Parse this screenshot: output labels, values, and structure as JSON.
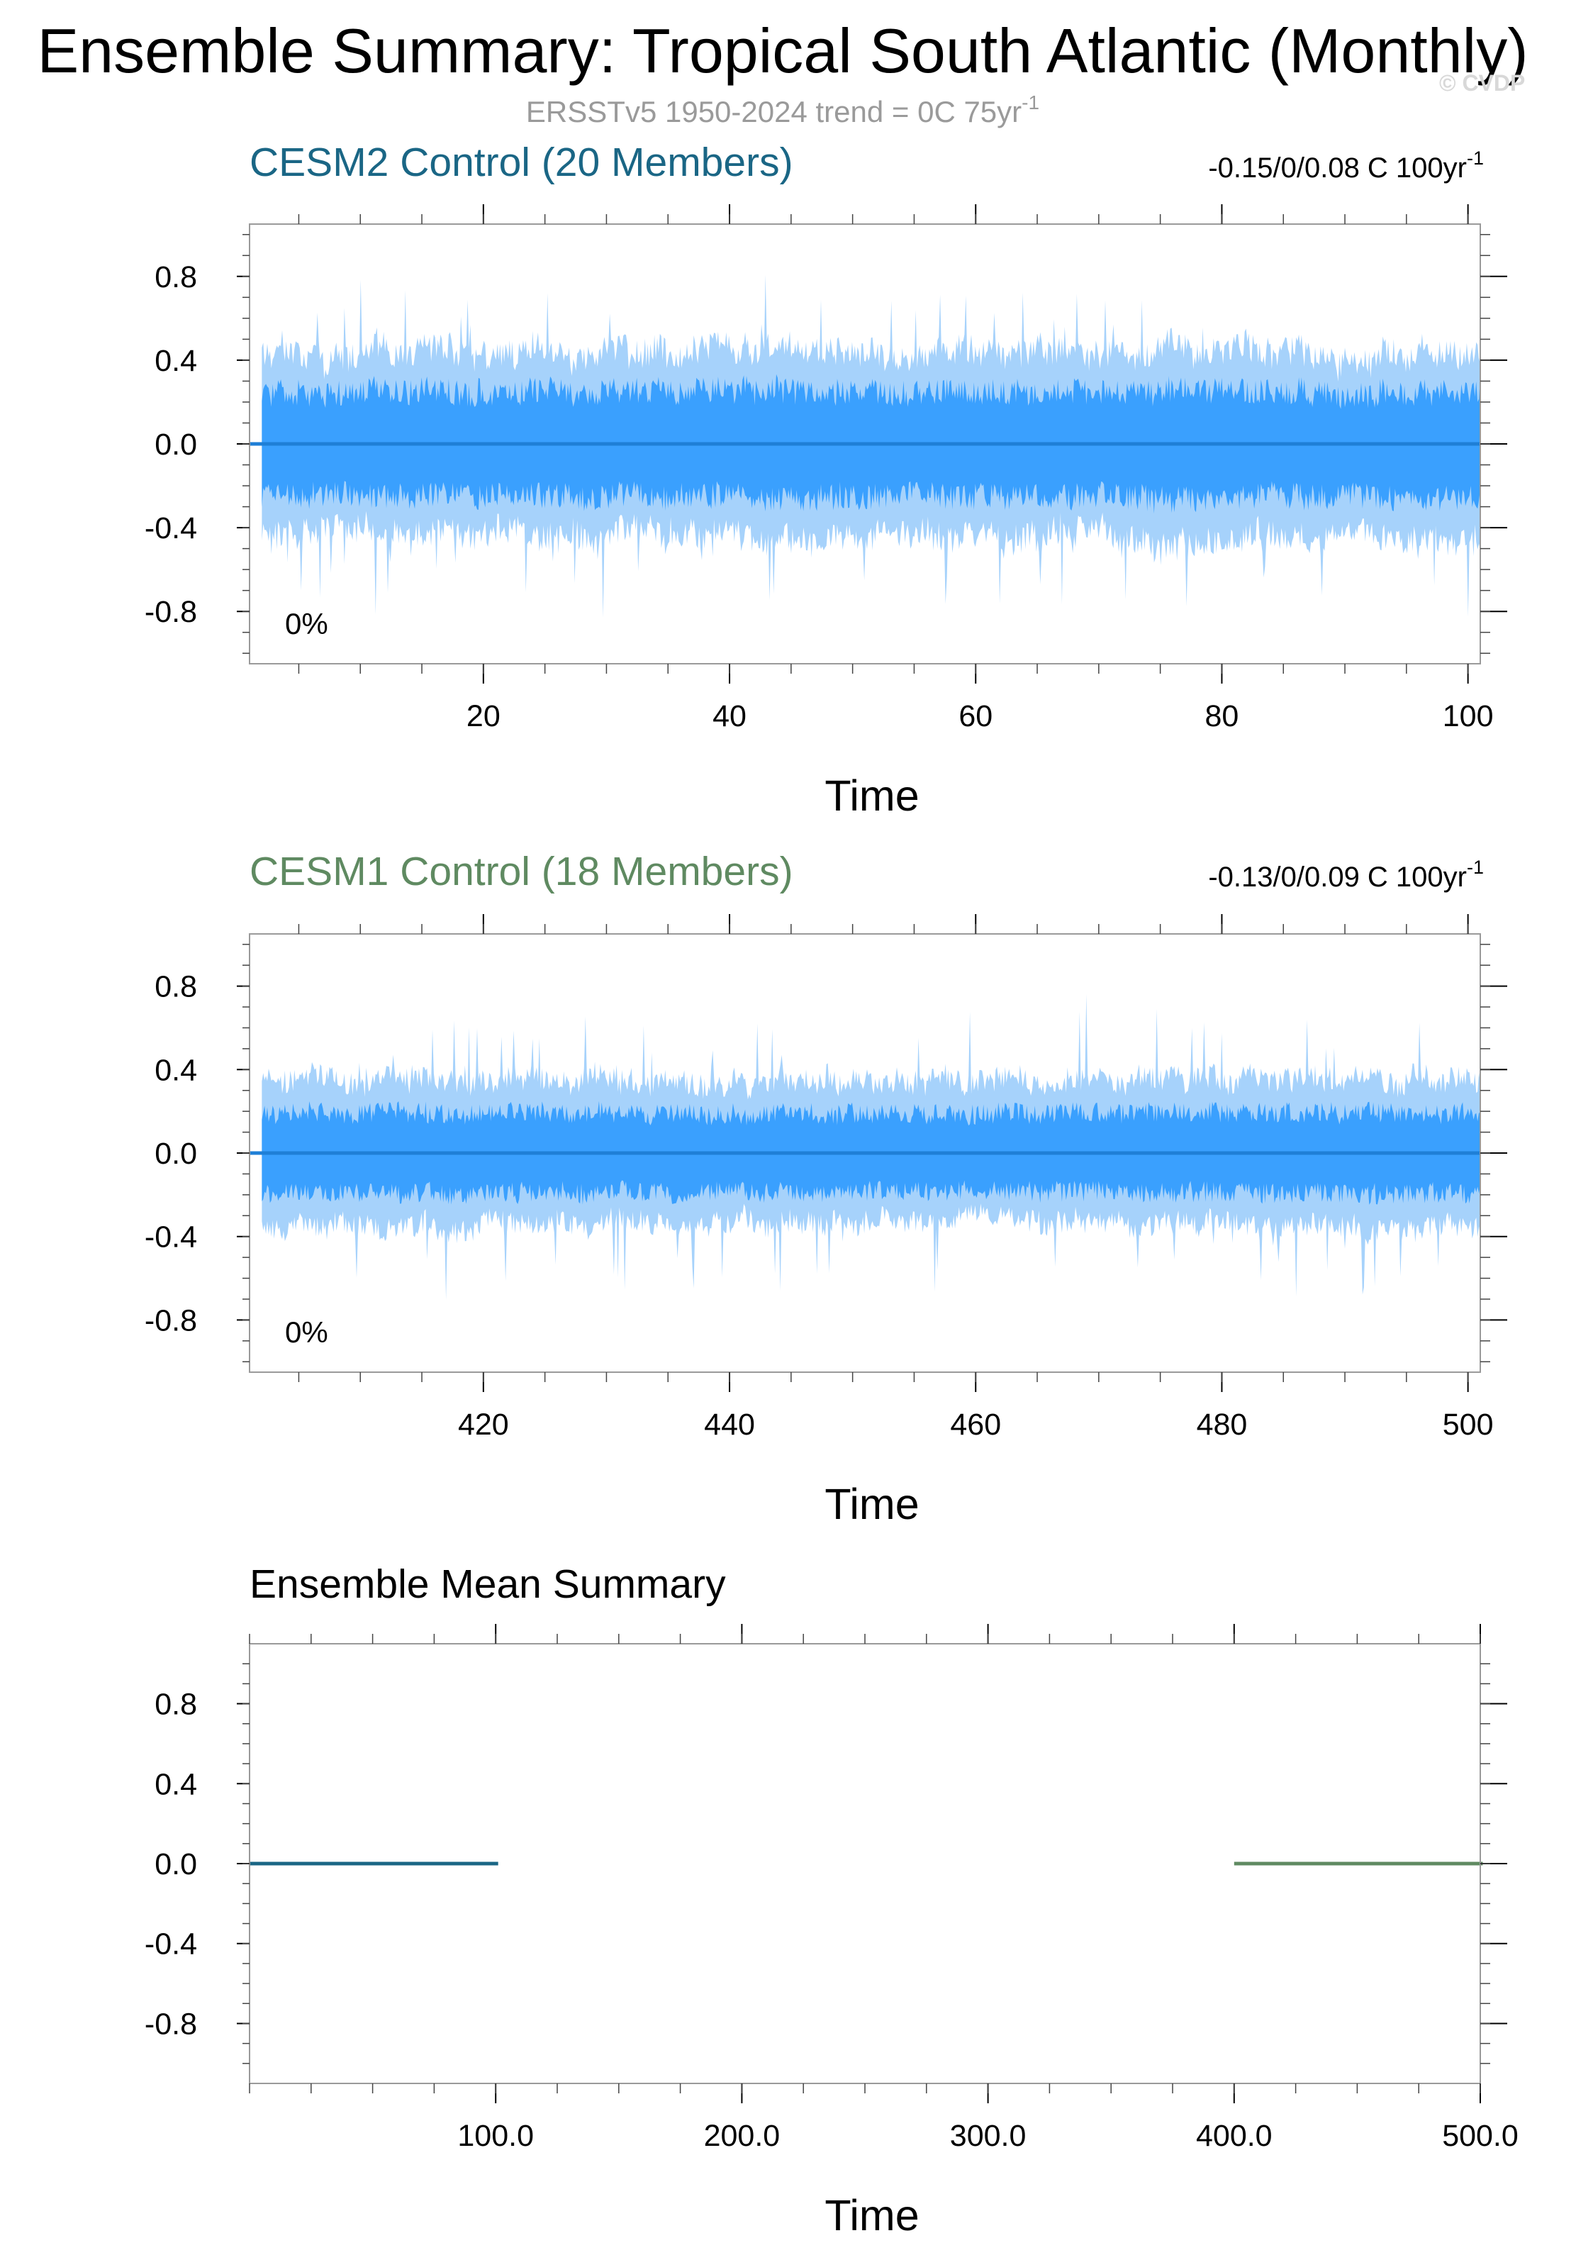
{
  "title": "Ensemble Summary: Tropical South Atlantic (Monthly)",
  "subtitle": "ERSSTv5 1950-2024 trend = 0C 75yr",
  "subtitle_sup": "-1",
  "copyright": "© CVDP",
  "colors": {
    "cesm2": "#1a6685",
    "cesm1": "#5f8a61",
    "band_outer": "#a6d2fb",
    "band_inner": "#3aa0fe",
    "mean_line": "#1f7fd6"
  },
  "chart_data": [
    {
      "type": "area",
      "title": "CESM2 Control (20 Members)",
      "trend_text": "-0.15/0/0.08 C 100yr",
      "trend_sup": "-1",
      "annotation": "0%",
      "xlabel": "Time",
      "ylabel": "",
      "xlim": [
        1,
        101
      ],
      "ylim": [
        -1.05,
        1.05
      ],
      "x_ticks": [
        20,
        40,
        60,
        80,
        100
      ],
      "x_tick_labels": [
        "20",
        "40",
        "60",
        "80",
        "100"
      ],
      "y_ticks": [
        0.8,
        0.4,
        0.0,
        -0.4,
        -0.8
      ],
      "y_tick_labels": [
        "0.8",
        "0.4",
        "0.0",
        "-0.4",
        "-0.8"
      ],
      "series": [
        {
          "name": "",
          "kind": "min_max_envelope",
          "amplitude": 0.5
        },
        {
          "name": "",
          "kind": "interquartile_envelope",
          "amplitude": 0.26
        },
        {
          "name": "",
          "kind": "ensemble_mean",
          "x": [
            1,
            101
          ],
          "values": [
            0,
            0
          ]
        }
      ]
    },
    {
      "type": "area",
      "title": "CESM1 Control (18 Members)",
      "trend_text": "-0.13/0/0.09 C 100yr",
      "trend_sup": "-1",
      "annotation": "0%",
      "xlabel": "Time",
      "ylabel": "",
      "xlim": [
        401,
        501
      ],
      "ylim": [
        -1.05,
        1.05
      ],
      "x_ticks": [
        420,
        440,
        460,
        480,
        500
      ],
      "x_tick_labels": [
        "420",
        "440",
        "460",
        "480",
        "500"
      ],
      "y_ticks": [
        0.8,
        0.4,
        0.0,
        -0.4,
        -0.8
      ],
      "y_tick_labels": [
        "0.8",
        "0.4",
        "0.0",
        "-0.4",
        "-0.8"
      ],
      "series": [
        {
          "name": "",
          "kind": "min_max_envelope",
          "amplitude": 0.4
        },
        {
          "name": "",
          "kind": "interquartile_envelope",
          "amplitude": 0.2
        },
        {
          "name": "",
          "kind": "ensemble_mean",
          "x": [
            401,
            501
          ],
          "values": [
            0,
            0
          ]
        }
      ]
    },
    {
      "type": "line",
      "title": "Ensemble Mean Summary",
      "xlabel": "Time",
      "ylabel": "",
      "xlim": [
        0,
        500
      ],
      "ylim": [
        -1.1,
        1.1
      ],
      "x_ticks": [
        100,
        200,
        300,
        400,
        500
      ],
      "x_tick_labels": [
        "100.0",
        "200.0",
        "300.0",
        "400.0",
        "500.0"
      ],
      "y_ticks": [
        0.8,
        0.4,
        0.0,
        -0.4,
        -0.8
      ],
      "y_tick_labels": [
        "0.8",
        "0.4",
        "0.0",
        "-0.4",
        "-0.8"
      ],
      "series": [
        {
          "name": "",
          "x": [
            0,
            101
          ],
          "values": [
            0,
            0
          ],
          "color": "#1a6685"
        },
        {
          "name": "",
          "x": [
            400,
            501
          ],
          "values": [
            0,
            0
          ],
          "color": "#5f8a61"
        }
      ]
    }
  ]
}
